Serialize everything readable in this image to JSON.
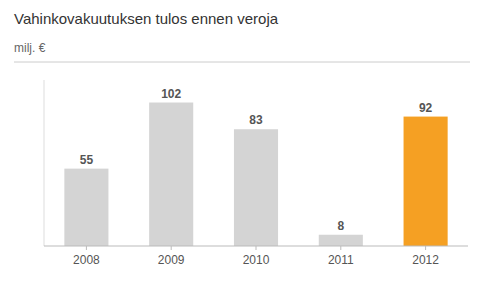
{
  "chart_data": {
    "type": "bar",
    "title": "Vahinkovakuutuksen tulos ennen veroja",
    "ylabel": "milj. €",
    "categories": [
      "2008",
      "2009",
      "2010",
      "2011",
      "2012"
    ],
    "values": [
      55,
      102,
      83,
      8,
      92
    ],
    "colors": [
      "#d4d4d4",
      "#d4d4d4",
      "#d4d4d4",
      "#d4d4d4",
      "#f5a023"
    ],
    "ylim": [
      0,
      118
    ],
    "data_labels": true,
    "tick_labels": "x"
  }
}
